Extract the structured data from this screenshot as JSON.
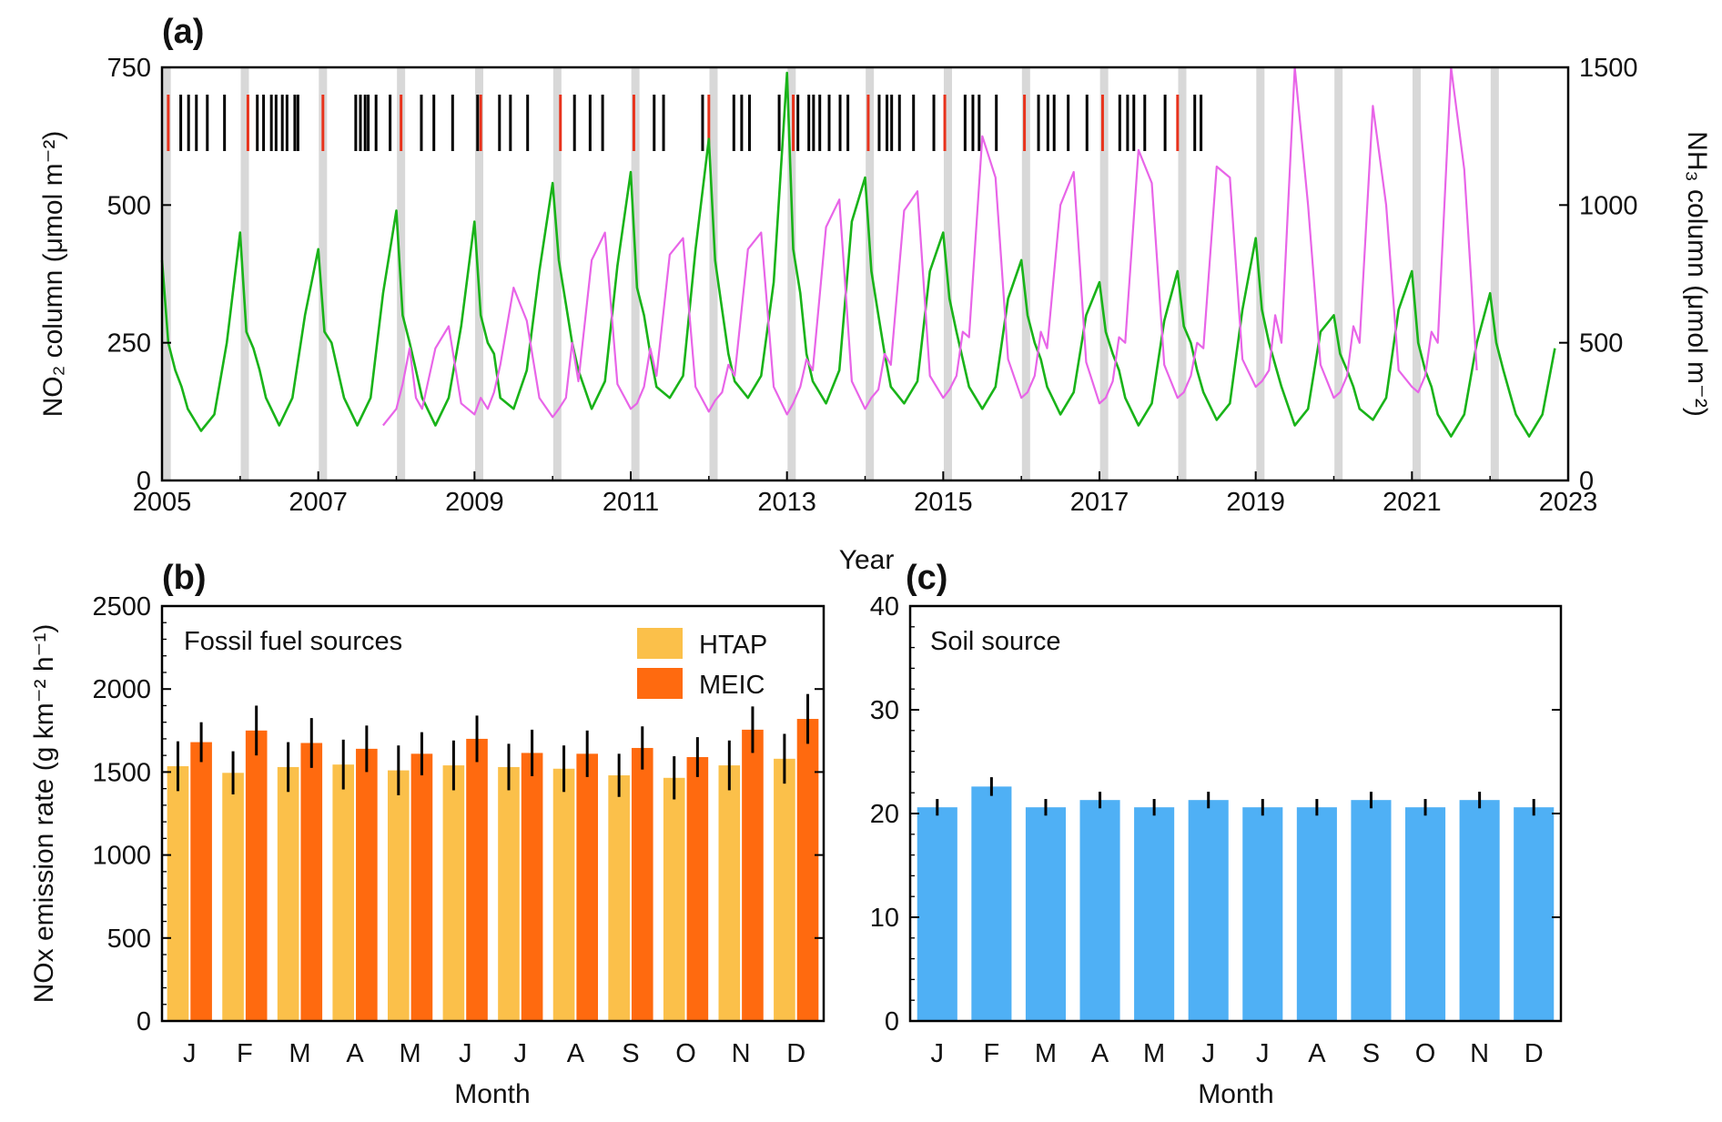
{
  "colors": {
    "no2": "#19b319",
    "nh3": "#e865e8",
    "htap": "#fbc04a",
    "meic": "#ff6a0f",
    "soil": "#4fb0f5",
    "shade": "#d8d8d8",
    "event_red": "#e8331c",
    "event_black": "#000000"
  },
  "chart_data": [
    {
      "panel": "(a)",
      "type": "line",
      "xlabel": "Year",
      "ylabel": "NO₂ column (μmol m⁻²)",
      "y2label": "NH₃ column (μmol m⁻²)",
      "xlim": [
        2005,
        2023
      ],
      "ylim": [
        0,
        750
      ],
      "y2lim": [
        0,
        1500
      ],
      "xticks": [
        "2005",
        "2007",
        "2009",
        "2011",
        "2013",
        "2015",
        "2017",
        "2019",
        "2021",
        "2023"
      ],
      "yticks": [
        "0",
        "250",
        "500",
        "750"
      ],
      "y2ticks": [
        "0",
        "500",
        "1000",
        "1500"
      ],
      "grid": false,
      "series": [
        {
          "axis": "left",
          "color_key": "no2",
          "x": [
            2005.0,
            2005.08,
            2005.17,
            2005.25,
            2005.33,
            2005.5,
            2005.67,
            2005.83,
            2006.0,
            2006.08,
            2006.17,
            2006.25,
            2006.33,
            2006.5,
            2006.67,
            2006.83,
            2007.0,
            2007.08,
            2007.17,
            2007.25,
            2007.33,
            2007.5,
            2007.67,
            2007.83,
            2008.0,
            2008.08,
            2008.17,
            2008.25,
            2008.33,
            2008.5,
            2008.67,
            2008.83,
            2009.0,
            2009.08,
            2009.17,
            2009.25,
            2009.33,
            2009.5,
            2009.67,
            2009.83,
            2010.0,
            2010.08,
            2010.17,
            2010.25,
            2010.33,
            2010.5,
            2010.67,
            2010.83,
            2011.0,
            2011.08,
            2011.17,
            2011.25,
            2011.33,
            2011.5,
            2011.67,
            2011.83,
            2012.0,
            2012.08,
            2012.17,
            2012.25,
            2012.33,
            2012.5,
            2012.67,
            2012.83,
            2013.0,
            2013.08,
            2013.17,
            2013.25,
            2013.33,
            2013.5,
            2013.67,
            2013.83,
            2014.0,
            2014.08,
            2014.17,
            2014.25,
            2014.33,
            2014.5,
            2014.67,
            2014.83,
            2015.0,
            2015.08,
            2015.17,
            2015.25,
            2015.33,
            2015.5,
            2015.67,
            2015.83,
            2016.0,
            2016.08,
            2016.17,
            2016.25,
            2016.33,
            2016.5,
            2016.67,
            2016.83,
            2017.0,
            2017.08,
            2017.17,
            2017.25,
            2017.33,
            2017.5,
            2017.67,
            2017.83,
            2018.0,
            2018.08,
            2018.17,
            2018.25,
            2018.33,
            2018.5,
            2018.67,
            2018.83,
            2019.0,
            2019.08,
            2019.17,
            2019.25,
            2019.33,
            2019.5,
            2019.67,
            2019.83,
            2020.0,
            2020.08,
            2020.17,
            2020.25,
            2020.33,
            2020.5,
            2020.67,
            2020.83,
            2021.0,
            2021.08,
            2021.17,
            2021.25,
            2021.33,
            2021.5,
            2021.67,
            2021.83,
            2022.0,
            2022.08,
            2022.17,
            2022.25,
            2022.33,
            2022.5,
            2022.67,
            2022.83
          ],
          "y": [
            400,
            250,
            200,
            170,
            130,
            90,
            120,
            250,
            450,
            270,
            240,
            200,
            150,
            100,
            150,
            300,
            420,
            270,
            250,
            200,
            150,
            100,
            150,
            340,
            490,
            300,
            250,
            200,
            150,
            100,
            150,
            280,
            470,
            300,
            250,
            230,
            150,
            130,
            200,
            380,
            540,
            400,
            320,
            250,
            200,
            130,
            180,
            390,
            560,
            350,
            300,
            230,
            170,
            150,
            190,
            420,
            620,
            400,
            310,
            230,
            180,
            150,
            190,
            360,
            740,
            420,
            340,
            230,
            180,
            140,
            200,
            470,
            550,
            380,
            300,
            230,
            170,
            140,
            180,
            380,
            450,
            330,
            270,
            220,
            170,
            130,
            170,
            330,
            400,
            300,
            250,
            220,
            170,
            120,
            160,
            300,
            360,
            270,
            230,
            200,
            150,
            100,
            140,
            290,
            380,
            280,
            250,
            200,
            160,
            110,
            140,
            310,
            440,
            310,
            250,
            210,
            170,
            100,
            130,
            270,
            300,
            230,
            200,
            170,
            130,
            110,
            150,
            310,
            380,
            250,
            200,
            170,
            120,
            80,
            120,
            250,
            340,
            250,
            200,
            160,
            120,
            80,
            120,
            240
          ]
        },
        {
          "axis": "right",
          "color_key": "nh3",
          "x": [
            2007.83,
            2008.0,
            2008.08,
            2008.17,
            2008.25,
            2008.33,
            2008.5,
            2008.67,
            2008.83,
            2009.0,
            2009.08,
            2009.17,
            2009.25,
            2009.33,
            2009.5,
            2009.67,
            2009.83,
            2010.0,
            2010.08,
            2010.17,
            2010.25,
            2010.33,
            2010.5,
            2010.67,
            2010.83,
            2011.0,
            2011.08,
            2011.17,
            2011.25,
            2011.33,
            2011.5,
            2011.67,
            2011.83,
            2012.0,
            2012.08,
            2012.17,
            2012.25,
            2012.33,
            2012.5,
            2012.67,
            2012.83,
            2013.0,
            2013.08,
            2013.17,
            2013.25,
            2013.33,
            2013.5,
            2013.67,
            2013.83,
            2014.0,
            2014.08,
            2014.17,
            2014.25,
            2014.33,
            2014.5,
            2014.67,
            2014.83,
            2015.0,
            2015.08,
            2015.17,
            2015.25,
            2015.33,
            2015.5,
            2015.67,
            2015.83,
            2016.0,
            2016.08,
            2016.17,
            2016.25,
            2016.33,
            2016.5,
            2016.67,
            2016.83,
            2017.0,
            2017.08,
            2017.17,
            2017.25,
            2017.33,
            2017.5,
            2017.67,
            2017.83,
            2018.0,
            2018.08,
            2018.17,
            2018.25,
            2018.33,
            2018.5,
            2018.67,
            2018.83,
            2019.0,
            2019.08,
            2019.17,
            2019.25,
            2019.33,
            2019.5,
            2019.67,
            2019.83,
            2020.0,
            2020.08,
            2020.17,
            2020.25,
            2020.33,
            2020.5,
            2020.67,
            2020.83,
            2021.0,
            2021.08,
            2021.17,
            2021.25,
            2021.33,
            2021.5,
            2021.67,
            2021.83
          ],
          "y": [
            200,
            260,
            350,
            480,
            300,
            260,
            480,
            560,
            280,
            240,
            300,
            260,
            320,
            420,
            700,
            580,
            300,
            230,
            260,
            300,
            500,
            360,
            800,
            900,
            350,
            260,
            280,
            340,
            480,
            380,
            820,
            880,
            340,
            250,
            290,
            320,
            420,
            380,
            840,
            900,
            340,
            240,
            280,
            340,
            440,
            400,
            920,
            1020,
            360,
            260,
            300,
            330,
            460,
            420,
            980,
            1050,
            380,
            300,
            330,
            380,
            540,
            520,
            1250,
            1100,
            440,
            300,
            320,
            380,
            540,
            480,
            1000,
            1120,
            430,
            280,
            300,
            360,
            520,
            500,
            1200,
            1080,
            420,
            300,
            320,
            380,
            500,
            480,
            1140,
            1100,
            440,
            340,
            360,
            400,
            600,
            500,
            1500,
            1000,
            420,
            300,
            320,
            380,
            560,
            500,
            1360,
            1000,
            400,
            340,
            320,
            380,
            540,
            500,
            1500,
            1130,
            400
          ]
        }
      ],
      "shaded_periods": [
        2005.06,
        2006.06,
        2007.06,
        2008.06,
        2009.06,
        2010.06,
        2011.06,
        2012.06,
        2013.06,
        2014.06,
        2015.06,
        2016.06,
        2017.06,
        2018.06,
        2019.06,
        2020.06,
        2021.06,
        2022.06
      ],
      "event_ticks_red": [
        2005.08,
        2006.1,
        2007.06,
        2008.06,
        2009.08,
        2010.1,
        2011.04,
        2012.0,
        2013.08,
        2014.04,
        2015.02,
        2016.04,
        2017.04,
        2018.0
      ],
      "event_ticks_black": [
        2005.24,
        2005.34,
        2005.44,
        2005.58,
        2005.8,
        2006.22,
        2006.3,
        2006.4,
        2006.46,
        2006.54,
        2006.6,
        2006.7,
        2006.74,
        2007.48,
        2007.54,
        2007.6,
        2007.64,
        2007.74,
        2007.92,
        2008.32,
        2008.48,
        2008.72,
        2009.04,
        2009.32,
        2009.46,
        2009.68,
        2010.28,
        2010.48,
        2010.64,
        2011.3,
        2011.42,
        2011.92,
        2012.32,
        2012.42,
        2012.52,
        2012.9,
        2013.14,
        2013.28,
        2013.34,
        2013.42,
        2013.54,
        2013.68,
        2013.78,
        2014.18,
        2014.28,
        2014.34,
        2014.44,
        2014.62,
        2014.88,
        2015.28,
        2015.38,
        2015.46,
        2015.68,
        2016.22,
        2016.34,
        2016.42,
        2016.6,
        2016.84,
        2017.26,
        2017.36,
        2017.44,
        2017.58,
        2017.84,
        2018.22,
        2018.3
      ]
    },
    {
      "panel": "(b)",
      "type": "bar",
      "annotation": "Fossil fuel sources",
      "xlabel": "Month",
      "ylabel": "NOx emission rate (g km⁻² h⁻¹)",
      "ylim": [
        0,
        2500
      ],
      "yticks": [
        "0",
        "500",
        "1000",
        "1500",
        "2000",
        "2500"
      ],
      "categories": [
        "J",
        "F",
        "M",
        "A",
        "M",
        "J",
        "J",
        "A",
        "S",
        "O",
        "N",
        "D"
      ],
      "legend_position": "top-right",
      "series": [
        {
          "name": "HTAP",
          "color_key": "htap",
          "values": [
            1535,
            1495,
            1530,
            1545,
            1510,
            1540,
            1530,
            1520,
            1480,
            1465,
            1540,
            1580
          ],
          "err": [
            150,
            130,
            150,
            150,
            150,
            150,
            140,
            140,
            130,
            130,
            150,
            150
          ]
        },
        {
          "name": "MEIC",
          "color_key": "meic",
          "values": [
            1680,
            1750,
            1675,
            1640,
            1610,
            1700,
            1615,
            1610,
            1645,
            1590,
            1755,
            1820
          ],
          "err": [
            120,
            150,
            150,
            140,
            130,
            140,
            140,
            140,
            130,
            120,
            140,
            150
          ]
        }
      ]
    },
    {
      "panel": "(c)",
      "type": "bar",
      "annotation": "Soil source",
      "xlabel": "Month",
      "ylim": [
        0,
        40
      ],
      "yticks": [
        "0",
        "10",
        "20",
        "30",
        "40"
      ],
      "categories": [
        "J",
        "F",
        "M",
        "A",
        "M",
        "J",
        "J",
        "A",
        "S",
        "O",
        "N",
        "D"
      ],
      "series": [
        {
          "color_key": "soil",
          "values": [
            20.6,
            22.6,
            20.6,
            21.3,
            20.6,
            21.3,
            20.6,
            20.6,
            21.3,
            20.6,
            21.3,
            20.6
          ],
          "err": [
            0.8,
            0.9,
            0.8,
            0.8,
            0.8,
            0.8,
            0.8,
            0.8,
            0.8,
            0.8,
            0.8,
            0.8
          ]
        }
      ]
    }
  ]
}
